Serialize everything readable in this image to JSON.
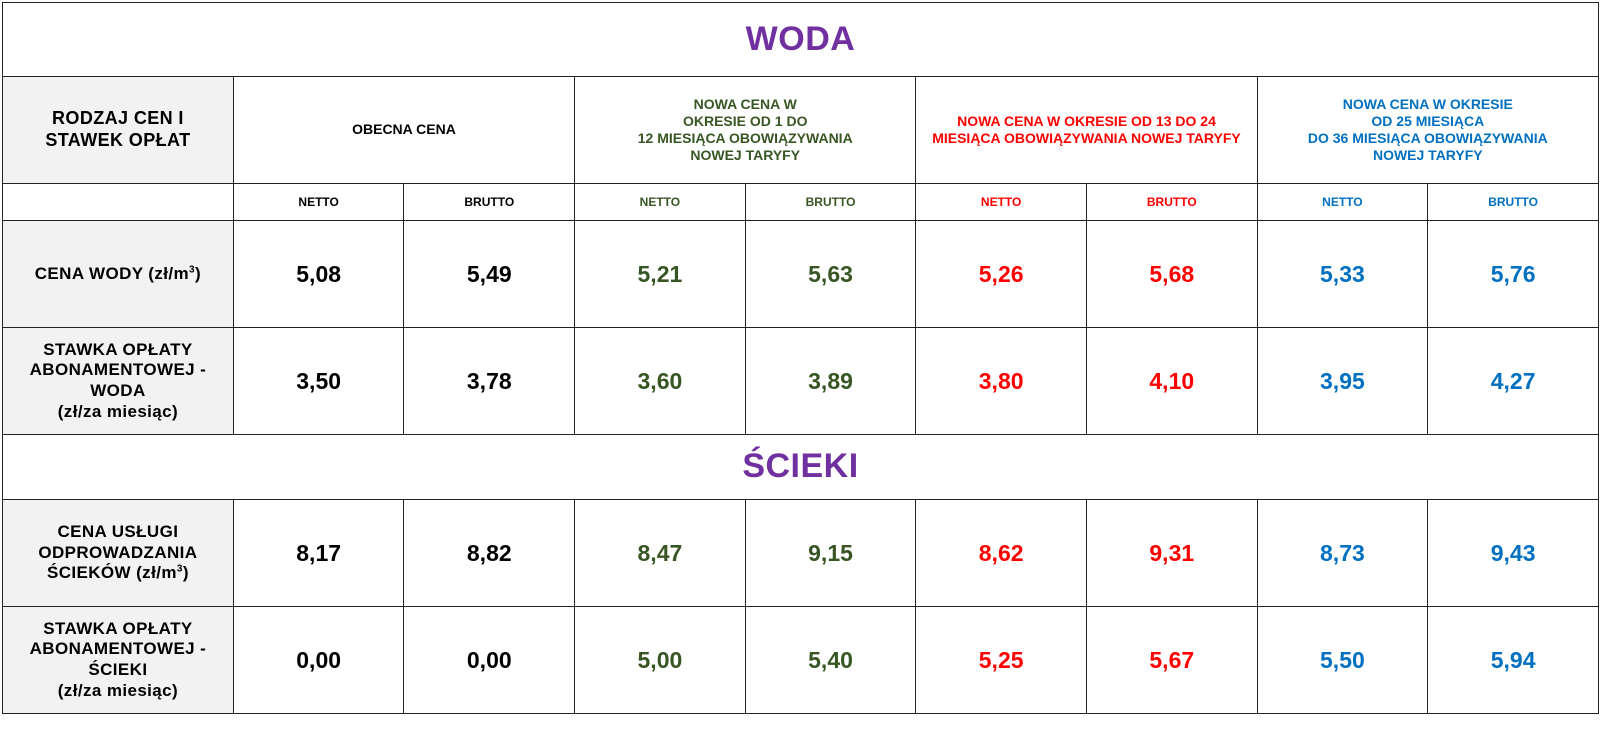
{
  "sections": {
    "water_title": "WODA",
    "sewage_title": "ŚCIEKI"
  },
  "header": {
    "label_line1": "RODZAJ CEN I",
    "label_line2": "STAWEK OPŁAT",
    "col_current": "OBECNA CENA",
    "col_period1": [
      "NOWA CENA W",
      "OKRESIE OD 1 DO",
      "12 MIESIĄCA OBOWIĄZYWANIA",
      "NOWEJ TARYFY"
    ],
    "col_period2": [
      "NOWA CENA W OKRESIE OD 13 DO 24",
      "MIESIĄCA OBOWIĄZYWANIA NOWEJ TARYFY"
    ],
    "col_period3": [
      "NOWA CENA W OKRESIE",
      "OD 25 MIESIĄCA",
      "DO 36 MIESIĄCA OBOWIĄZYWANIA",
      "NOWEJ TARYFY"
    ],
    "netto": "NETTO",
    "brutto": "BRUTTO"
  },
  "colors": {
    "title": "#7030a0",
    "current": "#000000",
    "period1": "#375623",
    "period2": "#ff0000",
    "period3": "#0070c0"
  },
  "rows": {
    "water_price": {
      "label": "CENA WODY (zł/m",
      "unit_sup": "3",
      "label_end": ")",
      "values": [
        "5,08",
        "5,49",
        "5,21",
        "5,63",
        "5,26",
        "5,68",
        "5,33",
        "5,76"
      ]
    },
    "water_fee": {
      "label": [
        "STAWKA OPŁATY",
        "ABONAMENTOWEJ -",
        "WODA",
        "(zł/za miesiąc)"
      ],
      "values": [
        "3,50",
        "3,78",
        "3,60",
        "3,89",
        "3,80",
        "4,10",
        "3,95",
        "4,27"
      ]
    },
    "sewage_price": {
      "label": [
        "CENA USŁUGI",
        "ODPROWADZANIA",
        "ŚCIEKÓW (zł/m"
      ],
      "unit_sup": "3",
      "label_end": ")",
      "values": [
        "8,17",
        "8,82",
        "8,47",
        "9,15",
        "8,62",
        "9,31",
        "8,73",
        "9,43"
      ]
    },
    "sewage_fee": {
      "label": [
        "STAWKA OPŁATY",
        "ABONAMENTOWEJ -",
        "ŚCIEKI",
        "(zł/za miesiąc)"
      ],
      "values": [
        "0,00",
        "0,00",
        "5,00",
        "5,40",
        "5,25",
        "5,67",
        "5,50",
        "5,94"
      ]
    }
  }
}
